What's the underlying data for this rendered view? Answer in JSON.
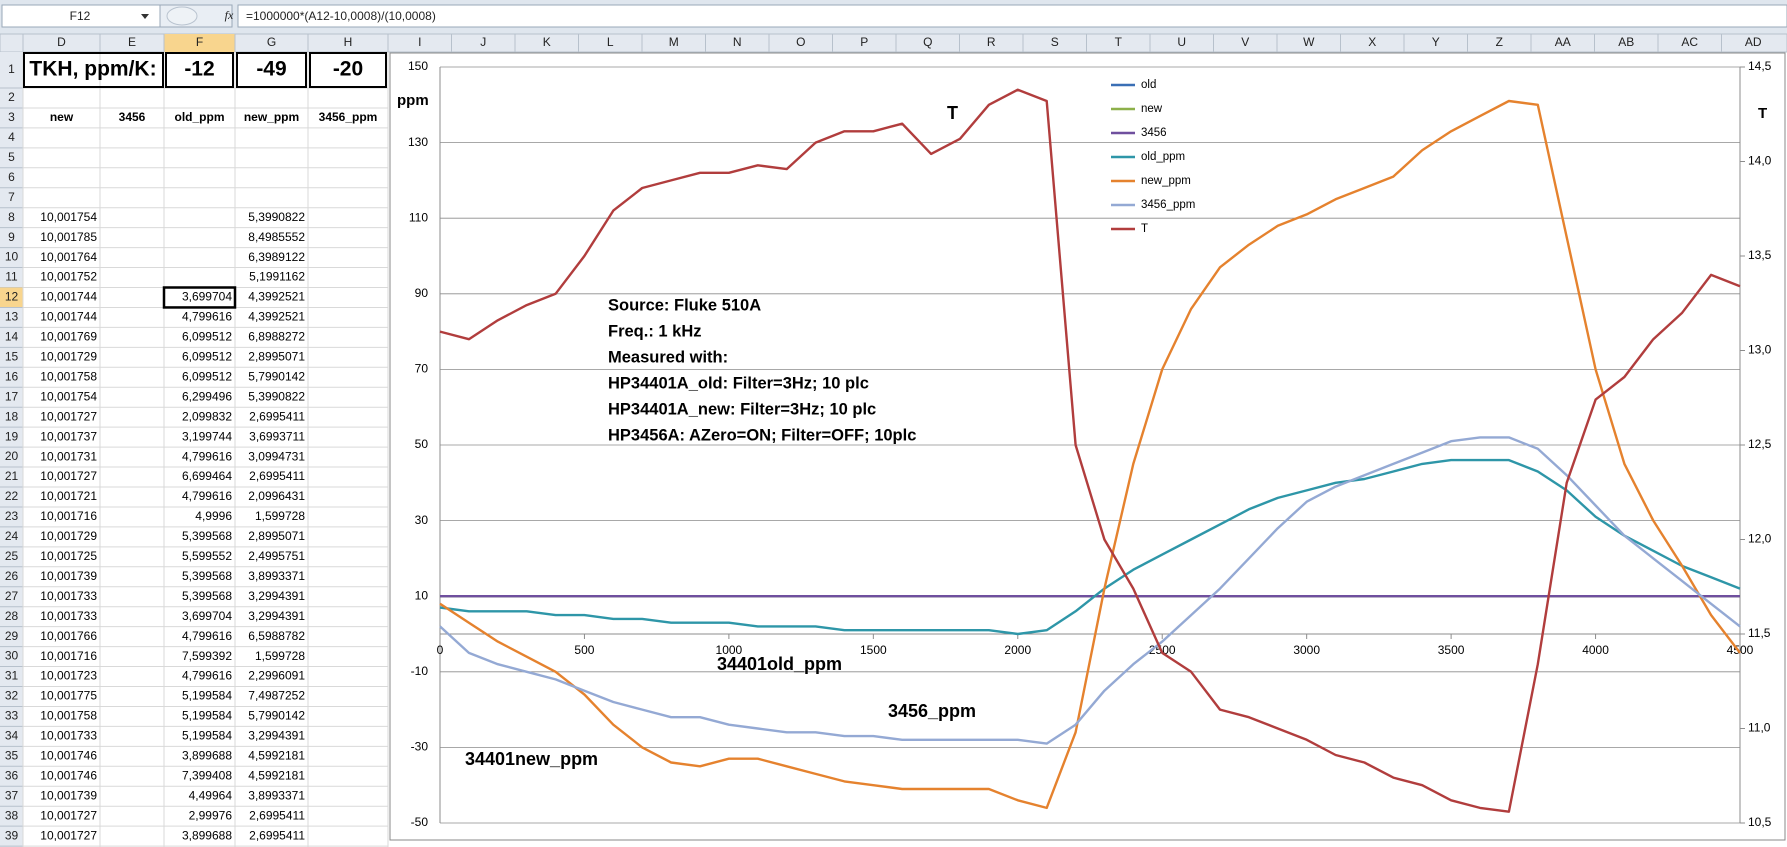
{
  "formula_bar": {
    "name_box": "F12",
    "fx": "fx",
    "formula": "=1000000*(A12-10,0008)/(10,0008)"
  },
  "sheet": {
    "columns": [
      "D",
      "E",
      "F",
      "G",
      "H",
      "I",
      "J",
      "K",
      "L",
      "M",
      "N",
      "O",
      "P",
      "Q",
      "R",
      "S",
      "T",
      "U",
      "V",
      "W",
      "X",
      "Y",
      "Z",
      "AA",
      "AB",
      "AC",
      "AD"
    ],
    "row_numbers": [
      1,
      2,
      3,
      4,
      5,
      6,
      7,
      8,
      9,
      10,
      11,
      12,
      13,
      14,
      15,
      16,
      17,
      18,
      19,
      20,
      21,
      22,
      23,
      24,
      25,
      26,
      27,
      28,
      29,
      30,
      31,
      32,
      33,
      34,
      35,
      36,
      37,
      38,
      39
    ],
    "row1": {
      "label": "TKH, ppm/K:",
      "values": [
        "-12",
        "-49",
        "-20"
      ]
    },
    "headers": [
      "new",
      "3456",
      "old_ppm",
      "new_ppm",
      "3456_ppm"
    ],
    "data_rows": [
      [
        "10,001754",
        null,
        "5,3990822"
      ],
      [
        "10,001785",
        null,
        "8,4985552"
      ],
      [
        "10,001764",
        null,
        "6,3989122"
      ],
      [
        "10,001752",
        null,
        "5,1991162"
      ],
      [
        "10,001744",
        "3,699704",
        "4,3992521"
      ],
      [
        "10,001744",
        "4,799616",
        "4,3992521"
      ],
      [
        "10,001769",
        "6,099512",
        "6,8988272"
      ],
      [
        "10,001729",
        "6,099512",
        "2,8995071"
      ],
      [
        "10,001758",
        "6,099512",
        "5,7990142"
      ],
      [
        "10,001754",
        "6,299496",
        "5,3990822"
      ],
      [
        "10,001727",
        "2,099832",
        "2,6995411"
      ],
      [
        "10,001737",
        "3,199744",
        "3,6993711"
      ],
      [
        "10,001731",
        "4,799616",
        "3,0994731"
      ],
      [
        "10,001727",
        "6,699464",
        "2,6995411"
      ],
      [
        "10,001721",
        "4,799616",
        "2,0996431"
      ],
      [
        "10,001716",
        "4,9996",
        "1,599728"
      ],
      [
        "10,001729",
        "5,399568",
        "2,8995071"
      ],
      [
        "10,001725",
        "5,599552",
        "2,4995751"
      ],
      [
        "10,001739",
        "5,399568",
        "3,8993371"
      ],
      [
        "10,001733",
        "5,399568",
        "3,2994391"
      ],
      [
        "10,001733",
        "3,699704",
        "3,2994391"
      ],
      [
        "10,001766",
        "4,799616",
        "6,5988782"
      ],
      [
        "10,001716",
        "7,599392",
        "1,599728"
      ],
      [
        "10,001723",
        "4,799616",
        "2,2996091"
      ],
      [
        "10,001775",
        "5,199584",
        "7,4987252"
      ],
      [
        "10,001758",
        "5,199584",
        "5,7990142"
      ],
      [
        "10,001733",
        "5,199584",
        "3,2994391"
      ],
      [
        "10,001746",
        "3,899688",
        "4,5992181"
      ],
      [
        "10,001746",
        "7,399408",
        "4,5992181"
      ],
      [
        "10,001739",
        "4,49964",
        "3,8993371"
      ],
      [
        "10,001727",
        "2,99976",
        "2,6995411"
      ],
      [
        "10,001727",
        "3,899688",
        "2,6995411"
      ]
    ]
  },
  "chart_data": {
    "type": "line",
    "y_label": "ppm",
    "y2_label": "T",
    "x": [
      0,
      100,
      200,
      300,
      400,
      500,
      600,
      700,
      800,
      900,
      1000,
      1100,
      1200,
      1300,
      1400,
      1500,
      1600,
      1700,
      1800,
      1900,
      2000,
      2100,
      2200,
      2300,
      2400,
      2500,
      2600,
      2700,
      2800,
      2900,
      3000,
      3100,
      3200,
      3300,
      3400,
      3500,
      3600,
      3700,
      3800,
      3900,
      4000,
      4100,
      4200,
      4300,
      4400,
      4500
    ],
    "xlim": [
      0,
      4500
    ],
    "xticks": [
      0,
      500,
      1000,
      1500,
      2000,
      2500,
      3000,
      3500,
      4000,
      4500
    ],
    "ylim": [
      -50,
      150
    ],
    "yticks": [
      -50,
      -30,
      -10,
      10,
      30,
      50,
      70,
      90,
      110,
      130,
      150
    ],
    "y2lim": [
      10.5,
      14.5
    ],
    "y2ticks": [
      {
        "value": 10.5,
        "label": "10,5"
      },
      {
        "value": 11,
        "label": "11,0"
      },
      {
        "value": 11.5,
        "label": "11,5"
      },
      {
        "value": 12,
        "label": "12,0"
      },
      {
        "value": 12.5,
        "label": "12,5"
      },
      {
        "value": 13,
        "label": "13,0"
      },
      {
        "value": 13.5,
        "label": "13,5"
      },
      {
        "value": 14,
        "label": "14,0"
      },
      {
        "value": 14.5,
        "label": "14,5"
      }
    ],
    "grid": true,
    "series": [
      {
        "name": "old",
        "color": "#3a6fb5",
        "values": [
          10,
          10,
          10,
          10,
          10,
          10,
          10,
          10,
          10,
          10,
          10,
          10,
          10,
          10,
          10,
          10,
          10,
          10,
          10,
          10,
          10,
          10,
          10,
          10,
          10,
          10,
          10,
          10,
          10,
          10,
          10,
          10,
          10,
          10,
          10,
          10,
          10,
          10,
          10,
          10,
          10,
          10,
          10,
          10,
          10,
          10
        ]
      },
      {
        "name": "new",
        "color": "#8db04a",
        "values": [
          10,
          10,
          10,
          10,
          10,
          10,
          10,
          10,
          10,
          10,
          10,
          10,
          10,
          10,
          10,
          10,
          10,
          10,
          10,
          10,
          10,
          10,
          10,
          10,
          10,
          10,
          10,
          10,
          10,
          10,
          10,
          10,
          10,
          10,
          10,
          10,
          10,
          10,
          10,
          10,
          10,
          10,
          10,
          10,
          10,
          10
        ]
      },
      {
        "name": "3456",
        "color": "#6f4f9e",
        "values": [
          10,
          10,
          10,
          10,
          10,
          10,
          10,
          10,
          10,
          10,
          10,
          10,
          10,
          10,
          10,
          10,
          10,
          10,
          10,
          10,
          10,
          10,
          10,
          10,
          10,
          10,
          10,
          10,
          10,
          10,
          10,
          10,
          10,
          10,
          10,
          10,
          10,
          10,
          10,
          10,
          10,
          10,
          10,
          10,
          10,
          10
        ]
      },
      {
        "name": "old_ppm",
        "color": "#2e96a8",
        "values": [
          7,
          6,
          6,
          6,
          5,
          5,
          4,
          4,
          3,
          3,
          3,
          2,
          2,
          2,
          1,
          1,
          1,
          1,
          1,
          1,
          0,
          1,
          6,
          12,
          17,
          21,
          25,
          29,
          33,
          36,
          38,
          40,
          41,
          43,
          45,
          46,
          46,
          46,
          43,
          38,
          31,
          26,
          22,
          18,
          15,
          12
        ]
      },
      {
        "name": "new_ppm",
        "color": "#e5822e",
        "values": [
          8,
          3,
          -2,
          -6,
          -10,
          -16,
          -24,
          -30,
          -34,
          -35,
          -33,
          -33,
          -35,
          -37,
          -39,
          -40,
          -41,
          -41,
          -41,
          -41,
          -44,
          -46,
          -26,
          12,
          45,
          70,
          86,
          97,
          103,
          108,
          111,
          115,
          118,
          121,
          128,
          133,
          137,
          141,
          140,
          105,
          70,
          45,
          30,
          18,
          5,
          -5
        ]
      },
      {
        "name": "3456_ppm",
        "color": "#94a9d4",
        "values": [
          2,
          -5,
          -8,
          -10,
          -12,
          -15,
          -18,
          -20,
          -22,
          -22,
          -24,
          -25,
          -26,
          -26,
          -27,
          -27,
          -28,
          -28,
          -28,
          -28,
          -28,
          -29,
          -24,
          -15,
          -8,
          -2,
          5,
          12,
          20,
          28,
          35,
          39,
          42,
          45,
          48,
          51,
          52,
          52,
          49,
          42,
          34,
          26,
          20,
          14,
          8,
          2
        ]
      },
      {
        "name": "T",
        "color": "#b13d3d",
        "axis": "y2",
        "values": [
          13.1,
          13.06,
          13.16,
          13.24,
          13.3,
          13.5,
          13.74,
          13.86,
          13.9,
          13.94,
          13.94,
          13.98,
          13.96,
          14.1,
          14.16,
          14.16,
          14.2,
          14.04,
          14.12,
          14.3,
          14.38,
          14.32,
          12.5,
          12.0,
          11.74,
          11.4,
          11.3,
          11.1,
          11.06,
          11.0,
          10.94,
          10.86,
          10.82,
          10.74,
          10.7,
          10.62,
          10.58,
          10.56,
          11.34,
          12.3,
          12.74,
          12.86,
          13.06,
          13.2,
          13.4,
          13.34
        ]
      }
    ],
    "annotations": [
      "T",
      "34401old_ppm",
      "3456_ppm",
      "34401new_ppm"
    ],
    "note_lines": [
      "Source:  Fluke 510A",
      "Freq.: 1 kHz",
      "Measured with:",
      "HP34401A_old: Filter=3Hz; 10 plc",
      "HP34401A_new: Filter=3Hz; 10 plc",
      "HP3456A: AZero=ON; Filter=OFF; 10plc"
    ]
  }
}
